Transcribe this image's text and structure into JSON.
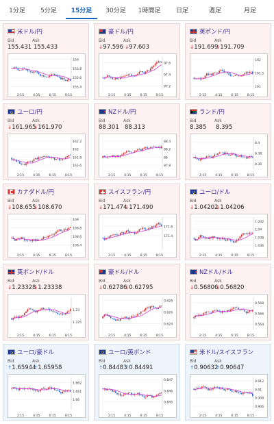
{
  "tabs": [
    {
      "label": "1分足",
      "active": false
    },
    {
      "label": "5分足",
      "active": false
    },
    {
      "label": "15分足",
      "active": true
    },
    {
      "label": "30分足",
      "active": false
    },
    {
      "label": "1時間足",
      "active": false
    },
    {
      "label": "日足",
      "active": false
    },
    {
      "label": "週足",
      "active": false
    },
    {
      "label": "月足",
      "active": false
    }
  ],
  "colors": {
    "up": "#d42c2c",
    "down": "#2a69c6",
    "ma": "#d63ad6",
    "link": "#3a2a9a"
  },
  "x_ticks": [
    "2:15",
    "4:15",
    "6:15",
    "8:15"
  ],
  "pairs": [
    {
      "name": "米ドル/円",
      "flag": "us",
      "bg": "pink",
      "bid_label": "Bid",
      "ask_label": "Ask",
      "bid": "155.431",
      "ask": "155.433",
      "dir": "",
      "chart_data": {
        "type": "candlestick",
        "y_ticks": [
          "156",
          "155.8",
          "155.6",
          "155.4"
        ],
        "ylim": [
          155.35,
          156.05
        ],
        "trend": -0.6
      }
    },
    {
      "name": "豪ドル/円",
      "flag": "au",
      "bg": "pink",
      "bid_label": "Bid",
      "ask_label": "Ask",
      "bid": "97.596",
      "ask": "97.603",
      "dir": "down",
      "chart_data": {
        "type": "candlestick",
        "y_ticks": [
          "97.6",
          "97.4",
          "97.2"
        ],
        "ylim": [
          97.15,
          97.7
        ],
        "trend": 0.55
      }
    },
    {
      "name": "英ポンド/円",
      "flag": "gb",
      "bg": "pink",
      "bid_label": "Bid",
      "ask_label": "Ask",
      "bid": "191.699",
      "ask": "191.709",
      "dir": "down",
      "chart_data": {
        "type": "candlestick",
        "y_ticks": [
          "192",
          "191.5",
          "191"
        ],
        "ylim": [
          190.9,
          192.1
        ],
        "trend": 0.55
      }
    },
    {
      "name": "ユーロ/円",
      "flag": "eu",
      "bg": "pink",
      "bid_label": "Bid",
      "ask_label": "Ask",
      "bid": "161.965",
      "ask": "161.970",
      "dir": "down",
      "chart_data": {
        "type": "candlestick",
        "y_ticks": [
          "162.2",
          "162",
          "161.8",
          "161.6"
        ],
        "ylim": [
          161.5,
          162.3
        ],
        "trend": 0.45
      }
    },
    {
      "name": "NZドル/円",
      "flag": "nz",
      "bg": "pink",
      "bid_label": "Bid",
      "ask_label": "Ask",
      "bid": "88.301",
      "ask": "88.313",
      "dir": "",
      "chart_data": {
        "type": "candlestick",
        "y_ticks": [
          "88.4",
          "88.2",
          "88",
          "87.8"
        ],
        "ylim": [
          87.7,
          88.5
        ],
        "trend": 0.5
      }
    },
    {
      "name": "ランド/円",
      "flag": "za",
      "bg": "pink",
      "bid_label": "Bid",
      "ask_label": "Ask",
      "bid": "8.385",
      "ask": "8.395",
      "dir": "",
      "chart_data": {
        "type": "candlestick",
        "y_ticks": [
          "8.4",
          "8.38",
          "8.36"
        ],
        "ylim": [
          8.35,
          8.41
        ],
        "trend": 0.3
      }
    },
    {
      "name": "カナダドル/円",
      "flag": "ca",
      "bg": "pink",
      "bid_label": "Bid",
      "ask_label": "Ask",
      "bid": "108.655",
      "ask": "108.670",
      "dir": "down",
      "chart_data": {
        "type": "candlestick",
        "y_ticks": [
          "109",
          "108.8",
          "108.6",
          "108.4"
        ],
        "ylim": [
          108.3,
          109.05
        ],
        "trend": 0.2
      }
    },
    {
      "name": "スイスフラン/円",
      "flag": "ch",
      "bg": "pink",
      "bid_label": "Bid",
      "ask_label": "Ask",
      "bid": "171.474",
      "ask": "171.490",
      "dir": "down",
      "chart_data": {
        "type": "candlestick",
        "y_ticks": [
          "171.6",
          "171.4"
        ],
        "ylim": [
          171.1,
          171.8
        ],
        "trend": 0.55
      }
    },
    {
      "name": "ユーロ/ドル",
      "flag": "eu",
      "bg": "pink",
      "bid_label": "Bid",
      "ask_label": "Ask",
      "bid": "1.04202",
      "ask": "1.04206",
      "dir": "down",
      "chart_data": {
        "type": "candlestick",
        "y_ticks": [
          "1.042",
          "1.04",
          "1.038",
          "1.036"
        ],
        "ylim": [
          1.035,
          1.043
        ],
        "trend": 0.6
      }
    },
    {
      "name": "英ポンド/ドル",
      "flag": "gb",
      "bg": "pink",
      "bid_label": "Bid",
      "ask_label": "Ask",
      "bid": "1.23328",
      "ask": "1.23338",
      "dir": "down",
      "chart_data": {
        "type": "candlestick",
        "y_ticks": [
          "1.23",
          "1.225"
        ],
        "ylim": [
          1.222,
          1.235
        ],
        "trend": 0.6
      }
    },
    {
      "name": "豪ドル/ドル",
      "flag": "au",
      "bg": "pink",
      "bid_label": "Bid",
      "ask_label": "Ask",
      "bid": "0.62786",
      "ask": "0.62795",
      "dir": "down",
      "chart_data": {
        "type": "candlestick",
        "y_ticks": [
          "0.628",
          "0.626",
          "0.624"
        ],
        "ylim": [
          0.623,
          0.6285
        ],
        "trend": 0.55
      }
    },
    {
      "name": "NZドル/ドル",
      "flag": "nz",
      "bg": "pink",
      "bid_label": "Bid",
      "ask_label": "Ask",
      "bid": "0.56806",
      "ask": "0.56820",
      "dir": "down",
      "chart_data": {
        "type": "candlestick",
        "y_ticks": [
          "0.568",
          "0.566",
          "0.564"
        ],
        "ylim": [
          0.563,
          0.569
        ],
        "trend": 0.55
      }
    },
    {
      "name": "ユーロ/豪ドル",
      "flag": "eu",
      "bg": "blue",
      "bid_label": "Bid",
      "ask_label": "Ask",
      "bid": "1.65944",
      "ask": "1.65958",
      "dir": "up",
      "chart_data": {
        "type": "candlestick",
        "y_ticks": [
          "1.662",
          "1.661",
          "1.66"
        ],
        "ylim": [
          1.6588,
          1.6626
        ],
        "trend": -0.2
      }
    },
    {
      "name": "ユーロ/英ポンド",
      "flag": "eu",
      "bg": "blue",
      "bid_label": "Bid",
      "ask_label": "Ask",
      "bid": "0.84483",
      "ask": "0.84491",
      "dir": "up",
      "chart_data": {
        "type": "candlestick",
        "y_ticks": [
          "0.847",
          "0.846",
          "0.845"
        ],
        "ylim": [
          0.8443,
          0.8472
        ],
        "trend": -0.55
      }
    },
    {
      "name": "米ドル/スイスフラン",
      "flag": "us",
      "bg": "blue",
      "bid_label": "Bid",
      "ask_label": "Ask",
      "bid": "0.90632",
      "ask": "0.90647",
      "dir": "up",
      "chart_data": {
        "type": "candlestick",
        "y_ticks": [
          "0.912",
          "0.91",
          "0.908",
          "0.906"
        ],
        "ylim": [
          0.9052,
          0.9128
        ],
        "trend": -0.5
      }
    }
  ]
}
